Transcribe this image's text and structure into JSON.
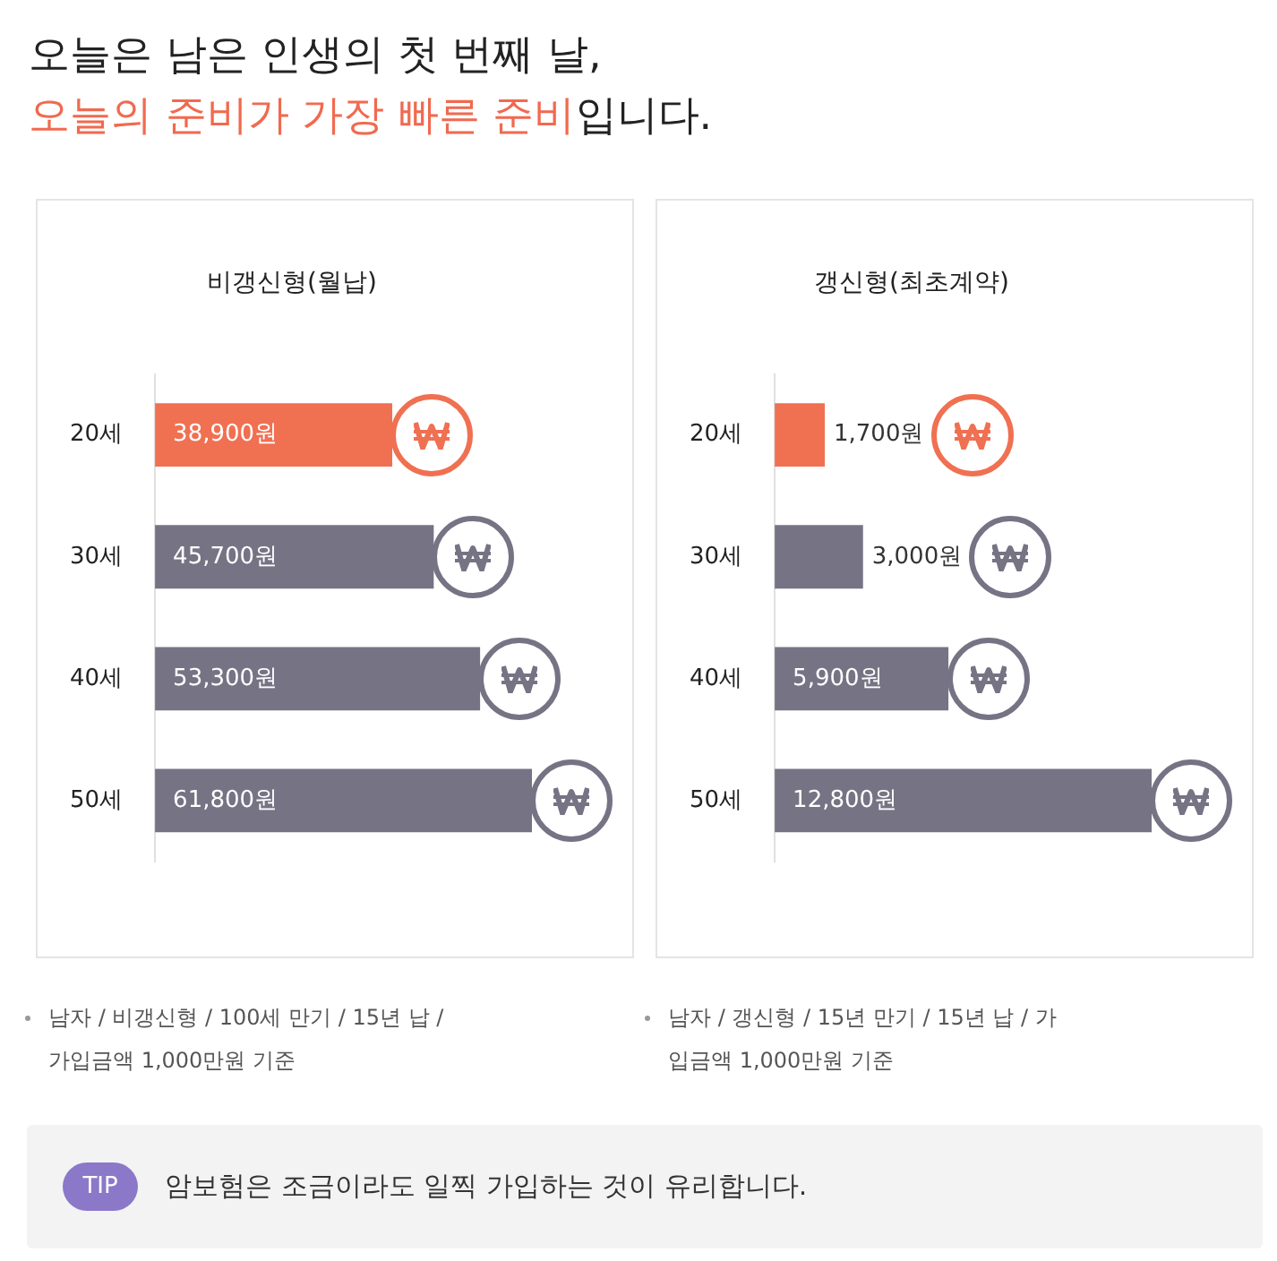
{
  "chart_data": [
    {
      "type": "other",
      "title": "오늘은 남은 인생의 첫 번째 날,",
      "annotations": [
        "오늘의 준비가 가장 빠른 준비",
        "입니다.",
        "TIP",
        "암보험은 조금이라도 일찍 가입하는 것이 유리합니다."
      ]
    },
    {
      "type": "bar",
      "orientation": "horizontal",
      "title": "비갱신형(월납)",
      "categories": [
        "20세",
        "30세",
        "40세",
        "50세"
      ],
      "values": [
        38900,
        45700,
        53300,
        61800
      ],
      "colors": [
        "#f07052",
        "#767384",
        "#767384",
        "#767384"
      ],
      "value_labels": [
        "38,900원",
        "45,700원",
        "53,300원",
        "61,800원"
      ],
      "tick_labels": "y",
      "legend": false,
      "annotations": [
        "남자 / 비갱신형 / 100세 만기 / 15년 납 / 가입금액 1,000만원 기준"
      ]
    },
    {
      "type": "bar",
      "orientation": "horizontal",
      "title": "갱신형(최초계약)",
      "categories": [
        "20세",
        "30세",
        "40세",
        "50세"
      ],
      "values": [
        1700,
        3000,
        5900,
        12800
      ],
      "colors": [
        "#f07052",
        "#767384",
        "#767384",
        "#767384"
      ],
      "value_labels": [
        "1,700원",
        "3,000원",
        "5,900원",
        "12,800원"
      ],
      "tick_labels": "y",
      "legend": false,
      "annotations": [
        "남자 / 갱신형 / 15년 만기 / 15년 납 / 가입금액 1,000만원 기준"
      ]
    }
  ]
}
